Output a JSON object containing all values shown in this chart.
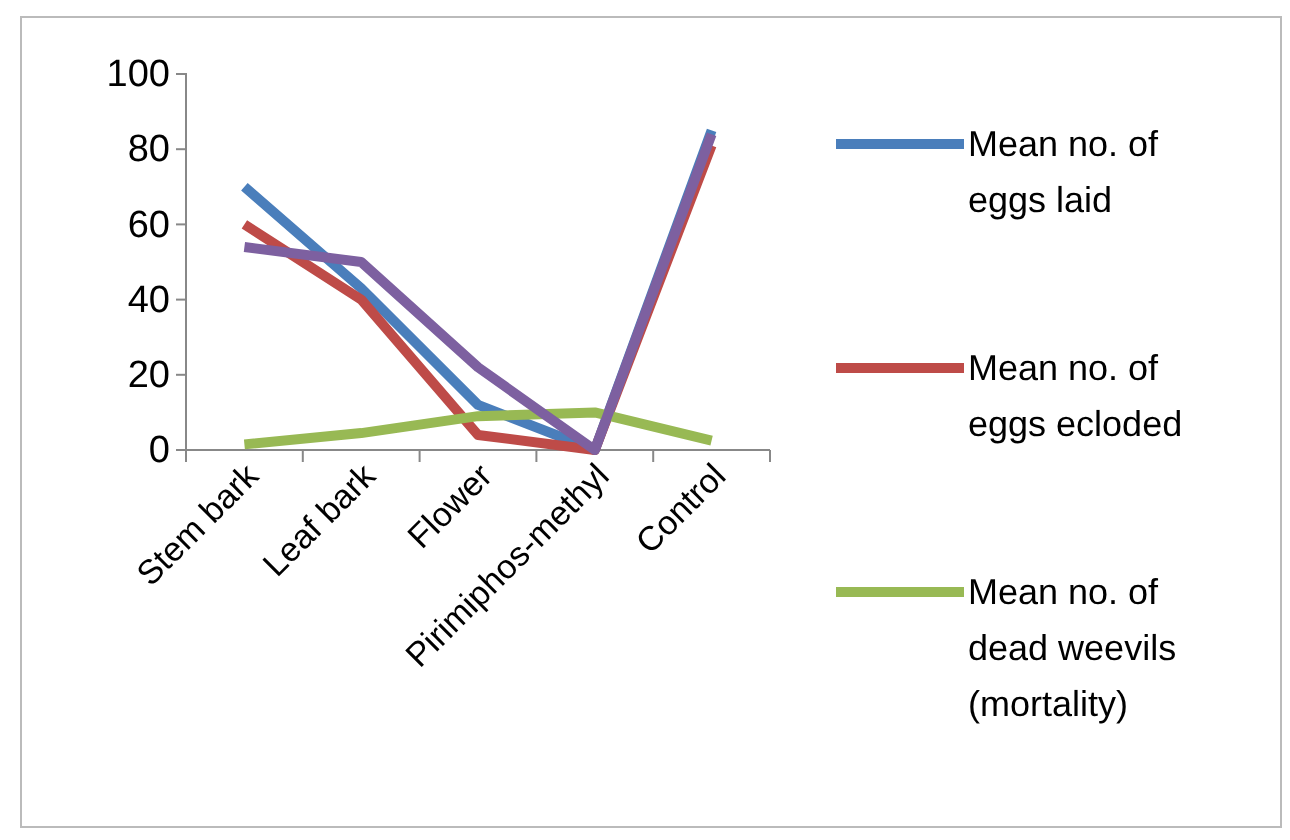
{
  "chart_data": {
    "type": "line",
    "categories": [
      "Stem bark",
      "Leaf bark",
      "Flower",
      "Pirimiphos-methyl",
      "Control"
    ],
    "series": [
      {
        "name": "Mean no. of eggs laid",
        "color": "#4a7ebb",
        "values": [
          70,
          43,
          12,
          0,
          85
        ]
      },
      {
        "name": "Mean no. of eggs ecloded",
        "color": "#be4b48",
        "values": [
          60,
          40,
          4,
          0,
          81
        ]
      },
      {
        "name": "Mean no. of dead weevils (mortality)",
        "color": "#98b954",
        "values": [
          1.5,
          4.5,
          9,
          10,
          2.5
        ]
      },
      {
        "color": "#7d60a0",
        "values": [
          54,
          50,
          22,
          0,
          84
        ]
      }
    ],
    "ylim": [
      0,
      100
    ],
    "yticks": [
      0,
      20,
      40,
      60,
      80,
      100
    ],
    "grid": false,
    "legend": "right",
    "marker": "none",
    "line_style": "solid"
  }
}
